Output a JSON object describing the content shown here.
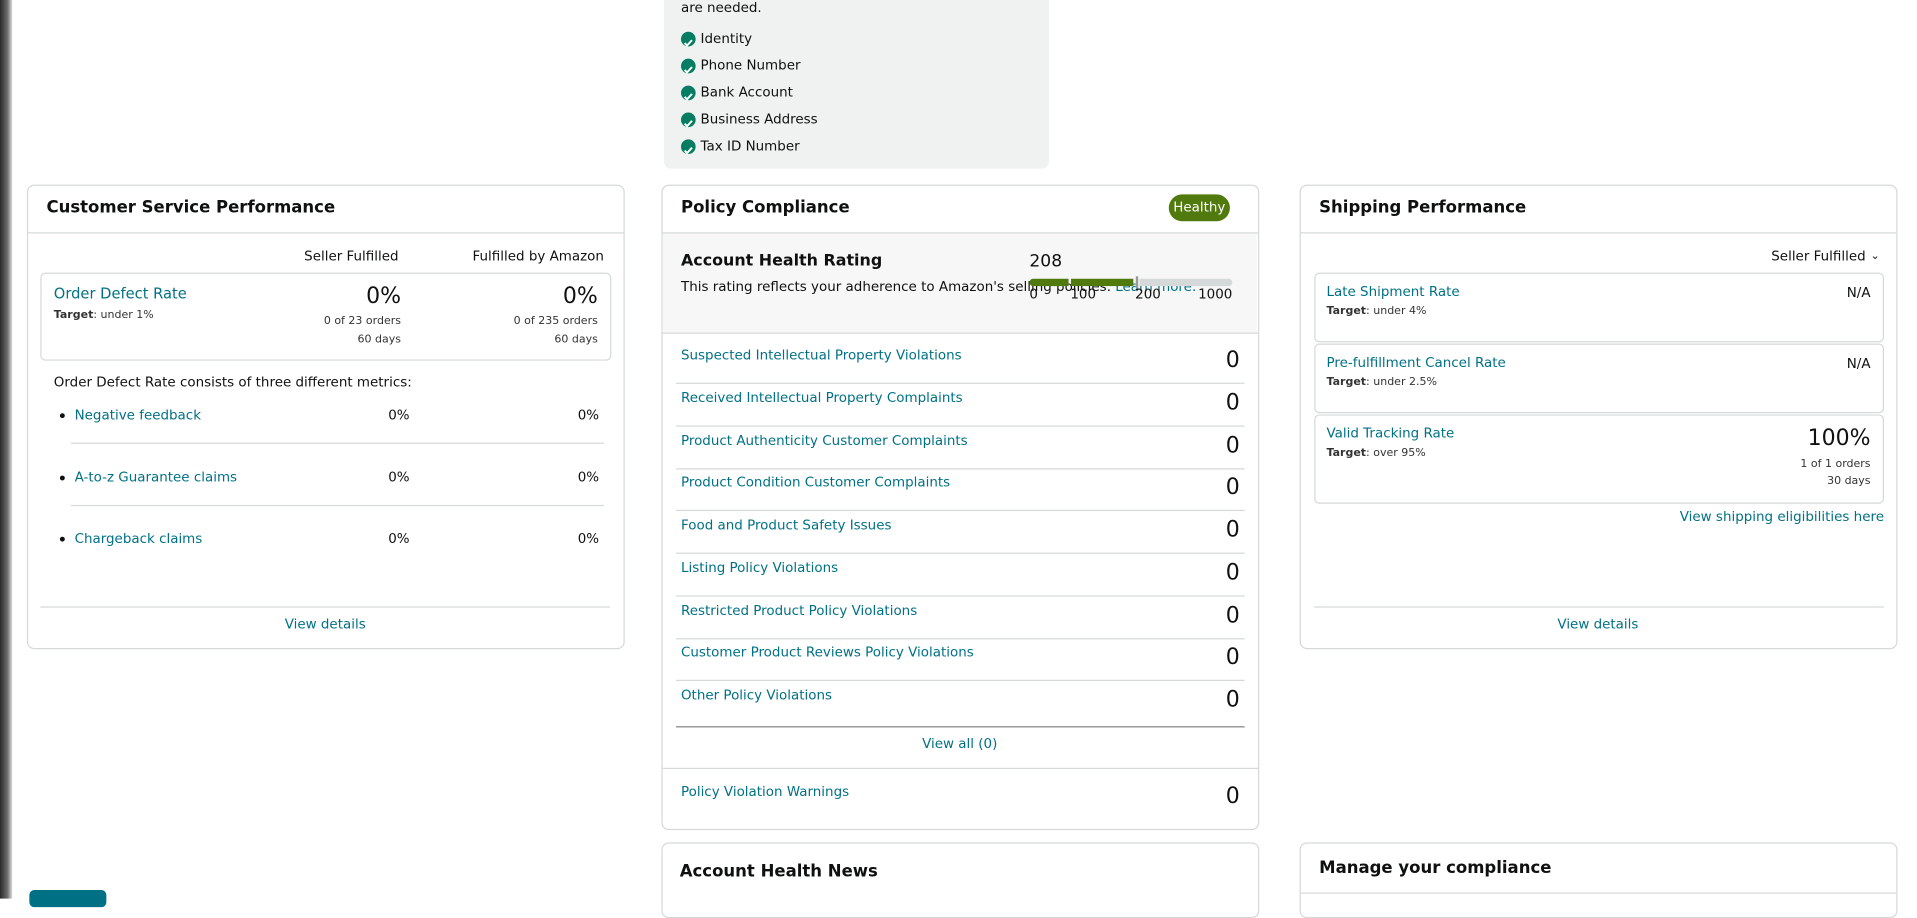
{
  "verification": {
    "intro": "are needed.",
    "items": [
      "Identity",
      "Phone Number",
      "Bank Account",
      "Business Address",
      "Tax ID Number"
    ]
  },
  "customer_service": {
    "title": "Customer Service Performance",
    "columns": [
      "Seller Fulfilled",
      "Fulfilled by Amazon"
    ],
    "odr": {
      "name": "Order Defect Rate",
      "target_label": "Target",
      "target_text": ": under 1%",
      "seller": {
        "value": "0%",
        "orders": "0 of 23 orders",
        "period": "60 days"
      },
      "fba": {
        "value": "0%",
        "orders": "0 of 235 orders",
        "period": "60 days"
      }
    },
    "description": "Order Defect Rate consists of three different metrics:",
    "metrics": [
      {
        "name": "Negative feedback",
        "seller": "0%",
        "fba": "0%"
      },
      {
        "name": "A-to-z Guarantee claims",
        "seller": "0%",
        "fba": "0%"
      },
      {
        "name": "Chargeback claims",
        "seller": "0%",
        "fba": "0%"
      }
    ],
    "link": "View details"
  },
  "policy": {
    "title": "Policy Compliance",
    "badge": "Healthy",
    "rating": {
      "title": "Account Health Rating",
      "description": "This rating reflects your adherence to Amazon's selling policies.",
      "link": "Learn more.",
      "score": 208,
      "scale": [
        0,
        100,
        200,
        1000
      ]
    },
    "violations": [
      {
        "name": "Suspected Intellectual Property Violations",
        "count": 0
      },
      {
        "name": "Received Intellectual Property Complaints",
        "count": 0
      },
      {
        "name": "Product Authenticity Customer Complaints",
        "count": 0
      },
      {
        "name": "Product Condition Customer Complaints",
        "count": 0
      },
      {
        "name": "Food and Product Safety Issues",
        "count": 0
      },
      {
        "name": "Listing Policy Violations",
        "count": 0
      },
      {
        "name": "Restricted Product Policy Violations",
        "count": 0
      },
      {
        "name": "Customer Product Reviews Policy Violations",
        "count": 0
      },
      {
        "name": "Other Policy Violations",
        "count": 0
      }
    ],
    "view_all": "View all (0)",
    "warnings": {
      "name": "Policy Violation Warnings",
      "count": 0
    }
  },
  "news": {
    "title": "Account Health News"
  },
  "shipping": {
    "title": "Shipping Performance",
    "filter": "Seller Fulfilled",
    "metrics": [
      {
        "name": "Late Shipment Rate",
        "target_label": "Target",
        "target_text": ": under 4%",
        "value": "N/A"
      },
      {
        "name": "Pre-fulfillment Cancel Rate",
        "target_label": "Target",
        "target_text": ": under 2.5%",
        "value": "N/A"
      },
      {
        "name": "Valid Tracking Rate",
        "target_label": "Target",
        "target_text": ": over 95%",
        "value": "100%",
        "orders": "1 of 1 orders",
        "period": "30 days"
      }
    ],
    "eligibility_link": "View shipping eligibilities here",
    "link": "View details"
  },
  "compliance": {
    "title": "Manage your compliance"
  }
}
